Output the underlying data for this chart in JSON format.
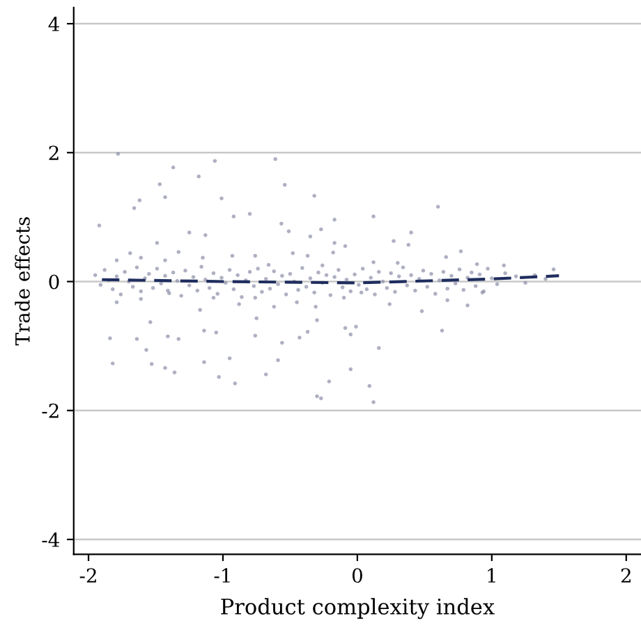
{
  "chart_data": {
    "type": "scatter",
    "xlabel": "Product complexity index",
    "ylabel": "Trade effects",
    "xlim": [
      -2.11,
      2.11
    ],
    "ylim": [
      -4.23,
      4.25
    ],
    "xticks": [
      {
        "value": -2,
        "label": "-2"
      },
      {
        "value": -1,
        "label": "-1"
      },
      0,
      1,
      2
    ],
    "yticks": [
      {
        "value": -4,
        "label": "-4"
      },
      {
        "value": -2,
        "label": "-2"
      },
      0,
      2,
      4
    ],
    "grid": "y",
    "legend": false,
    "series": [
      {
        "color": "#8c8fa8",
        "marker": "circle",
        "x": [
          -1.78,
          -1.37,
          -1.06,
          -0.61,
          -1.47,
          -1.18,
          -1.62,
          -1.43,
          -1.01,
          -0.54,
          -0.32,
          -1.66,
          0.6,
          -1.92,
          -0.92,
          -0.8,
          -0.565,
          -0.17,
          0.12,
          -0.51,
          -0.27,
          0.4,
          -1.25,
          -1.13,
          -1.49,
          0.27,
          0.38,
          -0.35,
          -0.17,
          -0.09,
          -1.69,
          -1.33,
          -0.76,
          -0.48,
          -0.37,
          -0.18,
          0.12,
          0.66,
          0.77,
          0.89,
          1.09,
          1.46,
          -1.79,
          -1.61,
          -1.43,
          -1.15,
          -0.93,
          -0.66,
          -0.26,
          0.3,
          -1.79,
          -1.61,
          -1.41,
          -1.17,
          -1.07,
          -0.88,
          -0.76,
          -0.62,
          -0.45,
          -0.31,
          -0.1,
          0.03,
          0.24,
          0.48,
          0.67,
          0.82,
          0.93,
          -1.54,
          -1.84,
          -1.64,
          -1.41,
          -1.33,
          -1.57,
          -1.14,
          -1.05,
          -0.75,
          -0.76,
          -0.56,
          -0.43,
          -0.37,
          -0.05,
          -0.09,
          -0.01,
          -0.3,
          0.16,
          0.63,
          -1.82,
          -1.53,
          -1.43,
          -1.36,
          -1.14,
          -0.95,
          -1.03,
          -0.91,
          -0.68,
          -0.59,
          -0.21,
          -0.05,
          0.09,
          -0.3,
          -0.27,
          0.12,
          -1.95,
          -1.91,
          -1.88,
          -1.85,
          -1.82,
          -1.79,
          -1.76,
          -1.73,
          -1.7,
          -1.67,
          -1.64,
          -1.61,
          -1.58,
          -1.55,
          -1.52,
          -1.49,
          -1.46,
          -1.43,
          -1.4,
          -1.37,
          -1.34,
          -1.31,
          -1.28,
          -1.25,
          -1.22,
          -1.19,
          -1.16,
          -1.13,
          -1.1,
          -1.07,
          -1.04,
          -1.01,
          -0.98,
          -0.95,
          -0.92,
          -0.89,
          -0.86,
          -0.83,
          -0.8,
          -0.77,
          -0.74,
          -0.71,
          -0.68,
          -0.65,
          -0.62,
          -0.59,
          -0.56,
          -0.53,
          -0.5,
          -0.47,
          -0.44,
          -0.41,
          -0.38,
          -0.35,
          -0.32,
          -0.29,
          -0.26,
          -0.23,
          -0.2,
          -0.17,
          -0.14,
          -0.11,
          -0.08,
          -0.05,
          -0.02,
          0.01,
          0.04,
          0.07,
          0.1,
          0.13,
          0.16,
          0.19,
          0.22,
          0.25,
          0.28,
          0.31,
          0.34,
          0.37,
          0.4,
          0.43,
          0.46,
          0.49,
          0.52,
          0.55,
          0.58,
          0.61,
          0.64,
          0.67,
          0.7,
          0.73,
          0.76,
          0.79,
          0.82,
          0.85,
          0.88,
          0.91,
          0.94,
          0.97,
          1.0,
          1.04,
          1.1,
          1.18,
          1.25,
          1.32,
          1.4
        ],
        "values": [
          1.98,
          1.77,
          1.87,
          1.9,
          1.51,
          1.63,
          1.26,
          1.31,
          1.29,
          1.5,
          1.33,
          1.14,
          1.16,
          0.87,
          1.01,
          1.05,
          0.9,
          0.96,
          1.01,
          0.78,
          0.81,
          0.76,
          0.76,
          0.72,
          0.6,
          0.63,
          0.57,
          0.7,
          0.6,
          0.55,
          0.44,
          0.46,
          0.4,
          0.44,
          0.4,
          0.45,
          0.3,
          0.38,
          0.47,
          0.27,
          0.25,
          0.19,
          0.33,
          0.37,
          0.33,
          0.37,
          0.4,
          0.26,
          0.25,
          0.29,
          -0.32,
          -0.27,
          -0.14,
          -0.44,
          -0.25,
          -0.35,
          -0.25,
          -0.39,
          -0.32,
          -0.39,
          -0.25,
          -0.17,
          -0.35,
          -0.46,
          -0.29,
          -0.37,
          -0.17,
          -0.63,
          -0.88,
          -0.89,
          -0.85,
          -0.89,
          -1.06,
          -0.76,
          -0.79,
          -0.57,
          -0.84,
          -0.95,
          -0.87,
          -0.78,
          -0.82,
          -0.72,
          -0.7,
          -0.6,
          -1.03,
          -0.76,
          -1.27,
          -1.28,
          -1.34,
          -1.41,
          -1.25,
          -1.19,
          -1.48,
          -1.58,
          -1.44,
          -1.22,
          -1.55,
          -1.36,
          -1.62,
          -1.78,
          -1.81,
          -1.87,
          0.1,
          -0.05,
          0.18,
          0.02,
          -0.12,
          0.08,
          -0.2,
          0.15,
          0.0,
          -0.08,
          0.22,
          -0.15,
          0.05,
          0.12,
          -0.1,
          0.2,
          -0.03,
          0.09,
          -0.18,
          0.14,
          0.01,
          -0.22,
          0.17,
          -0.06,
          0.07,
          -0.14,
          0.23,
          0.03,
          -0.1,
          0.13,
          -0.19,
          0.06,
          -0.02,
          0.18,
          -0.12,
          0.1,
          -0.24,
          0.02,
          0.15,
          -0.07,
          0.2,
          -0.16,
          0.04,
          -0.11,
          0.16,
          -0.04,
          0.09,
          -0.2,
          0.12,
          0.0,
          -0.13,
          0.21,
          -0.08,
          0.05,
          -0.17,
          0.14,
          -0.02,
          0.1,
          -0.21,
          0.07,
          0.18,
          -0.09,
          0.03,
          -0.15,
          0.11,
          -0.05,
          0.2,
          -0.12,
          0.06,
          -0.2,
          0.15,
          0.0,
          -0.1,
          0.13,
          -0.16,
          0.08,
          0.22,
          -0.06,
          0.1,
          -0.14,
          0.04,
          0.17,
          -0.08,
          0.12,
          -0.19,
          0.02,
          0.15,
          -0.11,
          0.09,
          -0.03,
          0.19,
          -0.13,
          0.06,
          0.14,
          -0.07,
          0.11,
          -0.15,
          0.2,
          0.05,
          -0.04,
          0.13,
          0.08,
          -0.02,
          0.1,
          0.04
        ]
      },
      {
        "type": "line",
        "color": "#1f2d5e",
        "line_style": "dashed",
        "marker": "none",
        "x": [
          -1.9,
          -1.0,
          0.0,
          1.0,
          1.5
        ],
        "values": [
          0.03,
          0.0,
          -0.02,
          0.04,
          0.09
        ]
      }
    ]
  }
}
